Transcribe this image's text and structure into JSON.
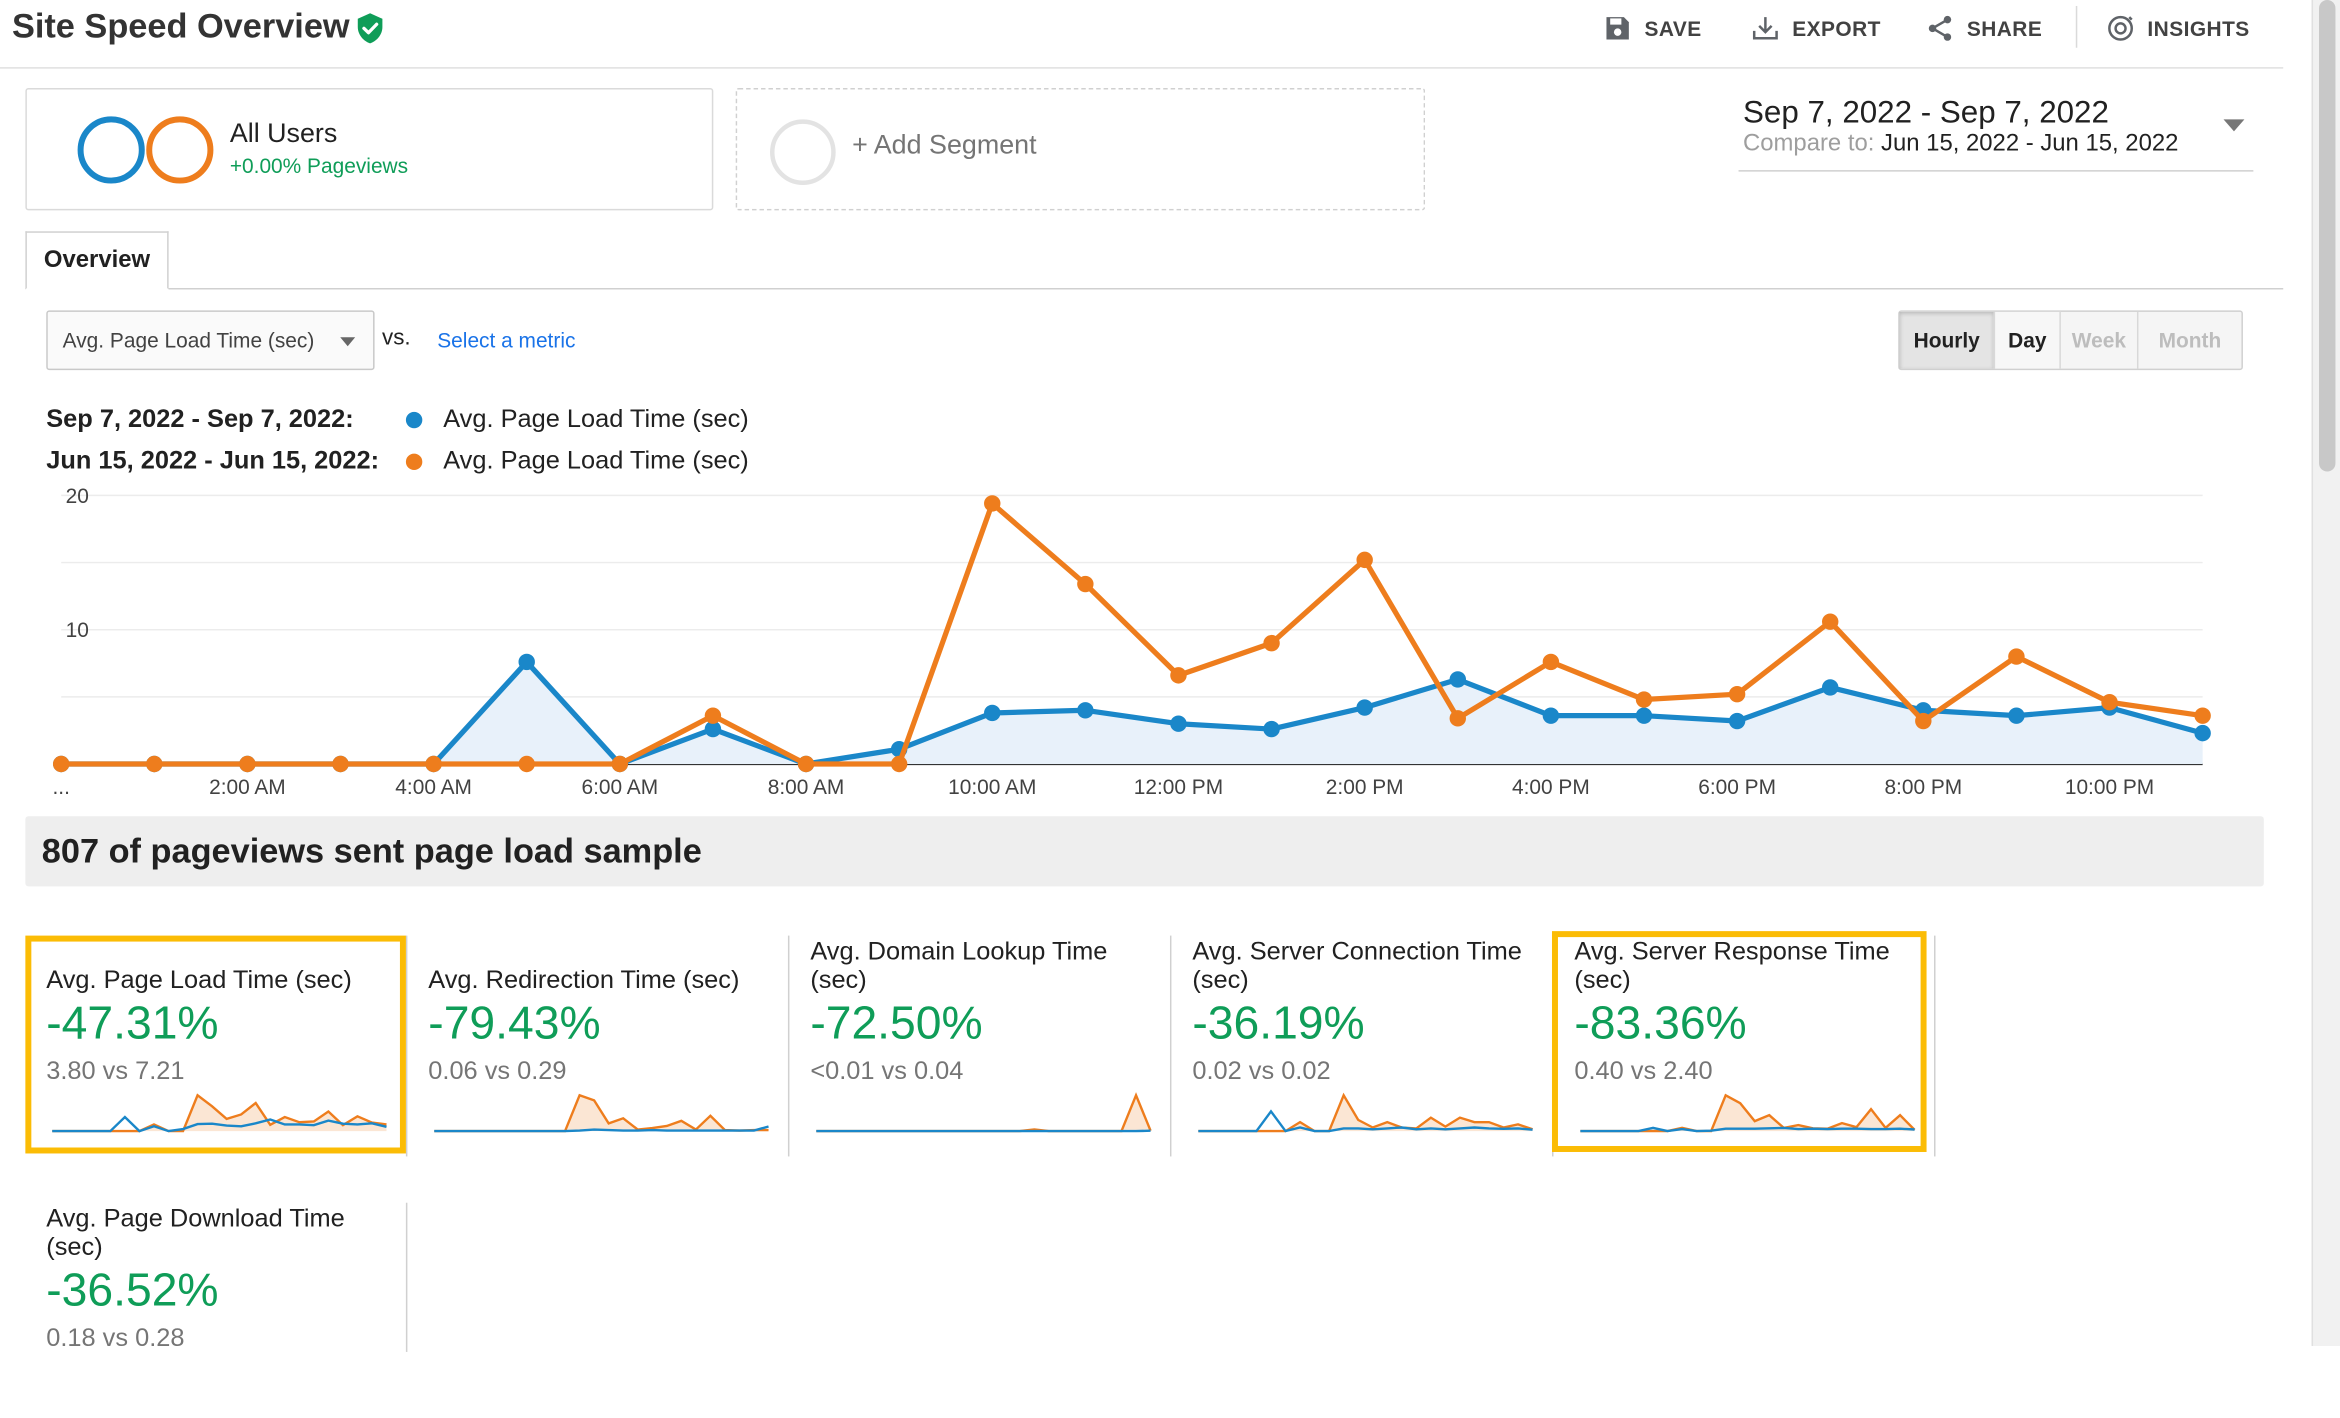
{
  "header": {
    "title": "Site Speed Overview",
    "verified_icon": "shield-check-icon",
    "actions": [
      {
        "label": "SAVE",
        "icon": "floppy-disk-icon"
      },
      {
        "label": "EXPORT",
        "icon": "download-icon"
      },
      {
        "label": "SHARE",
        "icon": "share-icon"
      },
      {
        "label": "INSIGHTS",
        "icon": "insights-icon"
      }
    ]
  },
  "segments": {
    "active": {
      "name": "All Users",
      "change": "+0.00% Pageviews"
    },
    "add_label": "+ Add Segment"
  },
  "date_range": {
    "primary": "Sep 7, 2022 - Sep 7, 2022",
    "compare_label": "Compare to:",
    "compare": "Jun 15, 2022 - Jun 15, 2022"
  },
  "tabs": [
    {
      "label": "Overview",
      "active": true
    }
  ],
  "metric_picker": {
    "selected": "Avg. Page Load Time (sec)",
    "vs": "vs.",
    "select_metric": "Select a metric"
  },
  "granularity": {
    "options": [
      "Hourly",
      "Day",
      "Week",
      "Month"
    ],
    "selected": "Hourly"
  },
  "legend": [
    {
      "range": "Sep 7, 2022 - Sep 7, 2022:",
      "series": "Avg. Page Load Time (sec)",
      "color": "#1a87c9"
    },
    {
      "range": "Jun 15, 2022 - Jun 15, 2022:",
      "series": "Avg. Page Load Time (sec)",
      "color": "#ee7d1d"
    }
  ],
  "chart_data": {
    "type": "line",
    "ylim": [
      0,
      20
    ],
    "y_ticks": [
      "10",
      "20"
    ],
    "x_tick_labels": [
      "...",
      "2:00 AM",
      "4:00 AM",
      "6:00 AM",
      "8:00 AM",
      "10:00 AM",
      "12:00 PM",
      "2:00 PM",
      "4:00 PM",
      "6:00 PM",
      "8:00 PM",
      "10:00 PM"
    ],
    "x_tick_hours": [
      0,
      2,
      4,
      6,
      8,
      10,
      12,
      14,
      16,
      18,
      20,
      22
    ],
    "hours": [
      0,
      1,
      2,
      3,
      4,
      5,
      6,
      7,
      8,
      9,
      10,
      11,
      12,
      13,
      14,
      15,
      16,
      17,
      18,
      19,
      20,
      21,
      22,
      23
    ],
    "grid": true,
    "series": [
      {
        "name": "Sep 7, 2022 - Sep 7, 2022",
        "color": "#1a87c9",
        "values": [
          0,
          0,
          0,
          0,
          0,
          7.6,
          0,
          2.6,
          0,
          1.1,
          3.8,
          4.0,
          3.0,
          2.6,
          4.2,
          6.3,
          3.6,
          3.6,
          3.2,
          5.7,
          4.0,
          3.6,
          4.2,
          2.3
        ]
      },
      {
        "name": "Jun 15, 2022 - Jun 15, 2022",
        "color": "#ee7d1d",
        "values": [
          0,
          0,
          0,
          0,
          0,
          0,
          0,
          3.6,
          0,
          0,
          19.4,
          13.4,
          6.6,
          9.0,
          15.2,
          3.4,
          7.6,
          4.8,
          5.2,
          10.6,
          3.2,
          8.0,
          4.6,
          3.6
        ]
      }
    ]
  },
  "sample": {
    "text": "807 of pageviews sent page load sample"
  },
  "tiles": [
    {
      "title": "Avg. Page Load Time (sec)",
      "pct": "-47.31%",
      "cmp": "3.80 vs 7.21",
      "highlighted": true,
      "spark_blue": [
        0,
        0,
        0,
        0,
        0,
        7.6,
        0,
        2.6,
        0,
        1.1,
        3.8,
        4.0,
        3.0,
        2.6,
        4.2,
        6.3,
        3.6,
        3.6,
        3.2,
        5.7,
        4.0,
        3.6,
        4.2,
        2.3
      ],
      "spark_orange": [
        0,
        0,
        0,
        0,
        0,
        0,
        0,
        3.6,
        0,
        0,
        19.4,
        13.4,
        6.6,
        9.0,
        15.2,
        3.4,
        7.6,
        4.8,
        5.2,
        10.6,
        3.2,
        8.0,
        4.6,
        3.6
      ]
    },
    {
      "title": "Avg. Redirection Time (sec)",
      "pct": "-79.43%",
      "cmp": "0.06 vs 0.29",
      "highlighted": false,
      "spark_blue": [
        0,
        0,
        0,
        0,
        0,
        0,
        0,
        0,
        0,
        0,
        0.1,
        0.3,
        0.2,
        0.1,
        0.1,
        0.2,
        0.1,
        0.1,
        0.1,
        0.1,
        0.1,
        0.1,
        0.1,
        0.9
      ],
      "spark_orange": [
        0,
        0,
        0,
        0,
        0,
        0,
        0,
        0,
        0,
        0,
        7.0,
        6.0,
        1.5,
        2.5,
        0.3,
        0.6,
        1.0,
        2.0,
        0.3,
        3.0,
        0.2,
        0.1,
        0.2,
        0.2
      ]
    },
    {
      "title": "Avg. Domain Lookup Time (sec)",
      "pct": "-72.50%",
      "cmp": "<0.01 vs 0.04",
      "highlighted": false,
      "spark_blue": [
        0,
        0,
        0,
        0,
        0,
        0,
        0,
        0,
        0,
        0,
        0,
        0,
        0,
        0,
        0,
        0,
        0,
        0,
        0,
        0,
        0,
        0,
        0,
        0.1
      ],
      "spark_orange": [
        0,
        0,
        0,
        0,
        0,
        0,
        0,
        0,
        0,
        0,
        0,
        0,
        0,
        0,
        0,
        0.4,
        0,
        0,
        0,
        0,
        0,
        0,
        9.0,
        0.1
      ]
    },
    {
      "title": "Avg. Server Connection Time (sec)",
      "pct": "-36.19%",
      "cmp": "0.02 vs 0.02",
      "highlighted": false,
      "spark_blue": [
        0,
        0,
        0,
        0,
        0,
        4.4,
        0,
        0.8,
        0,
        0,
        0.6,
        0.6,
        0.4,
        0.6,
        0.8,
        0.4,
        0.6,
        0.4,
        0.6,
        0.8,
        0.6,
        0.5,
        0.6,
        0.3
      ],
      "spark_orange": [
        0,
        0,
        0,
        0,
        0,
        0,
        0,
        2.0,
        0,
        0,
        8.0,
        2.5,
        0.8,
        2.0,
        0.8,
        0.6,
        3.0,
        1.0,
        3.0,
        2.0,
        2.0,
        0.8,
        1.5,
        0.4
      ]
    },
    {
      "title": "Avg. Server Response Time (sec)",
      "pct": "-83.36%",
      "cmp": "0.40 vs 2.40",
      "highlighted": true,
      "spark_blue": [
        0,
        0,
        0,
        0,
        0,
        0.8,
        0,
        0.5,
        0,
        0.1,
        0.6,
        0.6,
        0.6,
        0.7,
        0.8,
        0.5,
        0.6,
        0.5,
        0.6,
        0.6,
        0.5,
        0.5,
        0.6,
        0.4
      ],
      "spark_orange": [
        0,
        0,
        0,
        0,
        0,
        0,
        0,
        0.8,
        0,
        0,
        9.0,
        7.0,
        2.5,
        4.0,
        0.8,
        1.5,
        0.7,
        0.6,
        2.0,
        1.0,
        5.5,
        0.8,
        4.0,
        0.3
      ]
    },
    {
      "title": "Avg. Page Download Time (sec)",
      "pct": "-36.52%",
      "cmp": "0.18 vs 0.28",
      "highlighted": false,
      "spark_blue": [],
      "spark_orange": []
    }
  ]
}
